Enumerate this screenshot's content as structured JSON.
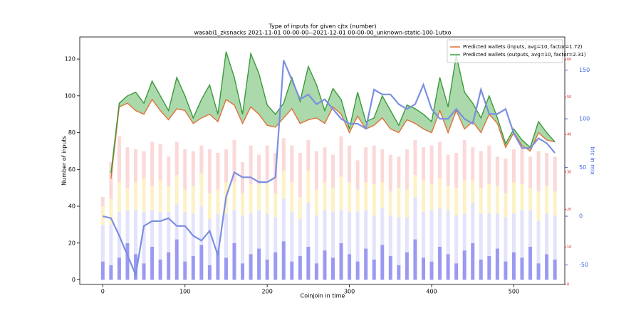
{
  "chart_data": {
    "type": "line",
    "title": "Type of inputs for given cjtx (number)",
    "subtitle": "wasabi1_zksnacks 2021-11-01 00-00-00--2021-12-01 00-00-00_unknown-static-100-1utxo",
    "x_label": "Coinjoin in time",
    "y_label": "Number of inputs",
    "y2_label": "btc in mix",
    "y2_color": "#4169e1",
    "y3_color": "#d62728",
    "legend": "upper right",
    "fill_between_color": "#2ca02c",
    "x": [
      0,
      10,
      20,
      30,
      40,
      50,
      60,
      70,
      80,
      90,
      100,
      110,
      120,
      130,
      140,
      150,
      160,
      170,
      180,
      190,
      200,
      210,
      220,
      230,
      240,
      250,
      260,
      270,
      280,
      290,
      300,
      310,
      320,
      330,
      340,
      350,
      360,
      370,
      380,
      390,
      400,
      410,
      420,
      430,
      440,
      450,
      460,
      470,
      480,
      490,
      500,
      510,
      520,
      530,
      540,
      550
    ],
    "xlim": [
      -28,
      562
    ],
    "xticks": [
      0,
      100,
      200,
      300,
      400,
      500
    ],
    "ylim": [
      -2.5,
      132
    ],
    "yticks": [
      0,
      20,
      40,
      60,
      80,
      100,
      120
    ],
    "y2lim": [
      -70,
      184
    ],
    "y2ticks": [
      -50,
      0,
      50,
      100,
      150
    ],
    "y3lim": [
      0,
      66
    ],
    "y3ticks": [
      0,
      10,
      20,
      30,
      40,
      50,
      60
    ],
    "series": [
      {
        "name": "Predicted wallets (inputs, avg=10, factor=1.72)",
        "color": "#e0703a",
        "values": [
          null,
          55,
          94,
          96,
          92,
          90,
          98,
          92,
          87,
          93,
          92,
          85,
          88,
          90,
          86,
          98,
          95,
          85,
          94,
          90,
          84,
          83,
          88,
          93,
          85,
          87,
          88,
          85,
          94,
          90,
          80,
          89,
          82,
          84,
          88,
          82,
          80,
          87,
          85,
          82,
          80,
          92,
          80,
          92,
          82,
          86,
          80,
          90,
          85,
          72,
          80,
          73,
          70,
          80,
          76,
          75
        ]
      },
      {
        "name": "Predicted wallets (outputs, avg=10, factor=2.31)",
        "color": "#3a9a3a",
        "values": [
          null,
          58,
          96,
          100,
          102,
          96,
          108,
          100,
          92,
          110,
          100,
          88,
          98,
          106,
          90,
          124,
          110,
          90,
          123,
          112,
          95,
          90,
          96,
          110,
          97,
          116,
          106,
          92,
          104,
          98,
          82,
          102,
          86,
          88,
          100,
          92,
          84,
          95,
          93,
          90,
          86,
          110,
          94,
          122,
          102,
          96,
          88,
          100,
          88,
          74,
          82,
          76,
          72,
          86,
          80,
          75
        ]
      },
      {
        "axis": "y2",
        "color": "#7b8fe0",
        "values": [
          0,
          -2,
          -20,
          -40,
          -60,
          -10,
          -5,
          -5,
          -2,
          -10,
          -10,
          -20,
          -25,
          -15,
          -40,
          20,
          45,
          40,
          40,
          35,
          35,
          40,
          160,
          140,
          120,
          125,
          115,
          120,
          110,
          100,
          95,
          95,
          90,
          130,
          125,
          125,
          115,
          110,
          115,
          135,
          110,
          100,
          100,
          110,
          100,
          95,
          130,
          105,
          105,
          110,
          85,
          70,
          70,
          80,
          75,
          65
        ]
      }
    ],
    "bar_series": [
      {
        "color": "#9a9af2",
        "values": [
          10,
          8,
          12,
          20,
          14,
          9,
          18,
          11,
          15,
          22,
          10,
          13,
          19,
          8,
          16,
          12,
          20,
          9,
          14,
          17,
          11,
          15,
          21,
          10,
          13,
          18,
          9,
          16,
          12,
          20,
          14,
          10,
          17,
          11,
          19,
          13,
          8,
          15,
          22,
          12,
          10,
          18,
          14,
          9,
          16,
          20,
          11,
          13,
          17,
          10,
          15,
          12,
          18,
          9,
          14,
          11
        ]
      },
      {
        "color": "#e3e3fb",
        "values": [
          20,
          22,
          25,
          18,
          24,
          28,
          20,
          26,
          22,
          19,
          27,
          23,
          21,
          25,
          20,
          24,
          18,
          26,
          22,
          21,
          25,
          19,
          23,
          27,
          20,
          24,
          26,
          22,
          25,
          18,
          23,
          27,
          21,
          24,
          20,
          22,
          26,
          19,
          23,
          25,
          28,
          21,
          24,
          26,
          20,
          22,
          25,
          23,
          19,
          24,
          21,
          26,
          20,
          23,
          22,
          24
        ]
      },
      {
        "color": "#fdf1c6",
        "values": [
          10,
          14,
          16,
          12,
          15,
          18,
          13,
          17,
          14,
          16,
          12,
          15,
          18,
          14,
          13,
          17,
          15,
          12,
          16,
          14,
          18,
          13,
          15,
          16,
          12,
          17,
          14,
          15,
          13,
          18,
          16,
          12,
          15,
          17,
          14,
          13,
          16,
          15,
          12,
          17,
          14,
          16,
          13,
          15,
          18,
          12,
          14,
          16,
          15,
          13,
          17,
          14,
          12,
          16,
          15,
          13
        ]
      },
      {
        "color": "#fbd9d9",
        "values": [
          5,
          20,
          25,
          22,
          18,
          15,
          24,
          20,
          16,
          18,
          22,
          19,
          15,
          24,
          20,
          18,
          23,
          17,
          21,
          16,
          19,
          22,
          18,
          20,
          24,
          17,
          21,
          19,
          18,
          22,
          20,
          16,
          19,
          21,
          18,
          20,
          17,
          22,
          19,
          18,
          21,
          20,
          17,
          19,
          22,
          18,
          20,
          21,
          16,
          19,
          18,
          20,
          17,
          22,
          18,
          19
        ]
      }
    ]
  }
}
